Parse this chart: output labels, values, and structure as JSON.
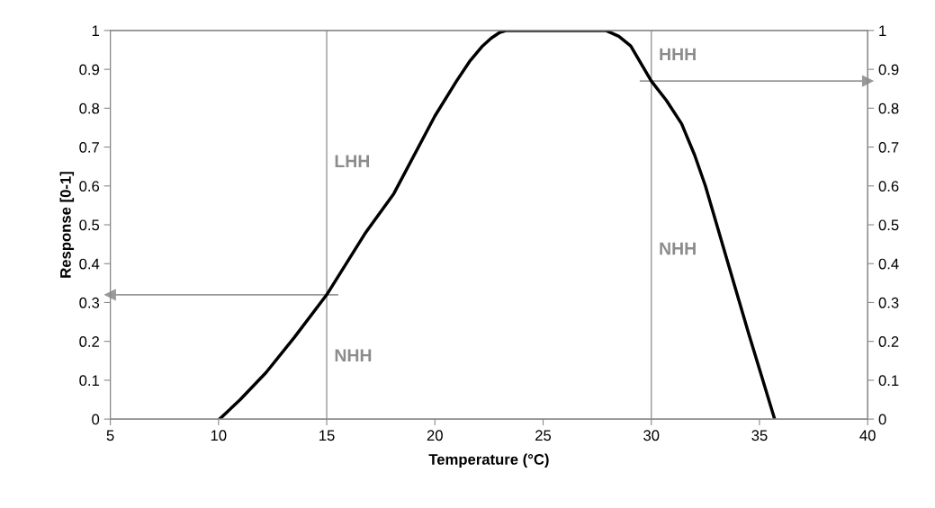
{
  "chart_data": {
    "type": "line",
    "xlabel": "Temperature (°C)",
    "ylabel": "Response [0-1]",
    "x": [
      10.05,
      11,
      12.2,
      13.5,
      15,
      16.8,
      18.1,
      20,
      21,
      21.6,
      22.2,
      22.6,
      23,
      23.3,
      25,
      27.9,
      28.5,
      29.05,
      30,
      30.7,
      31.4,
      32,
      32.5,
      33.5,
      34.5,
      35.1,
      35.7
    ],
    "series": [
      {
        "color": "#000000",
        "values": [
          0,
          0.05,
          0.12,
          0.21,
          0.32,
          0.48,
          0.58,
          0.78,
          0.87,
          0.92,
          0.96,
          0.98,
          0.995,
          1,
          1,
          1,
          0.985,
          0.96,
          0.87,
          0.82,
          0.76,
          0.68,
          0.6,
          0.41,
          0.22,
          0.11,
          0
        ]
      }
    ],
    "xlim": [
      5,
      40
    ],
    "xticks": [
      5,
      10,
      15,
      20,
      25,
      30,
      35,
      40
    ],
    "ylim": [
      0,
      1
    ],
    "yticks": [
      0,
      0.1,
      0.2,
      0.3,
      0.4,
      0.5,
      0.6,
      0.7,
      0.8,
      0.9,
      1
    ],
    "y2lim": [
      0,
      1
    ],
    "y2ticks": [
      0,
      0.1,
      0.2,
      0.3,
      0.4,
      0.5,
      0.6,
      0.7,
      0.8,
      0.9,
      1
    ],
    "ref_lines": [
      {
        "axis": "x",
        "value": 15,
        "color": "#999999"
      },
      {
        "axis": "x",
        "value": 30,
        "color": "#999999"
      },
      {
        "axis": "y",
        "value": 0.32,
        "color": "#999999"
      },
      {
        "axis": "y",
        "value": 0.87,
        "color": "#999999"
      }
    ],
    "annotations": [
      "LHH",
      "NHH",
      "HHH",
      "NHH"
    ],
    "grid": false,
    "legend": false,
    "marker": "none",
    "line_style": "solid"
  }
}
